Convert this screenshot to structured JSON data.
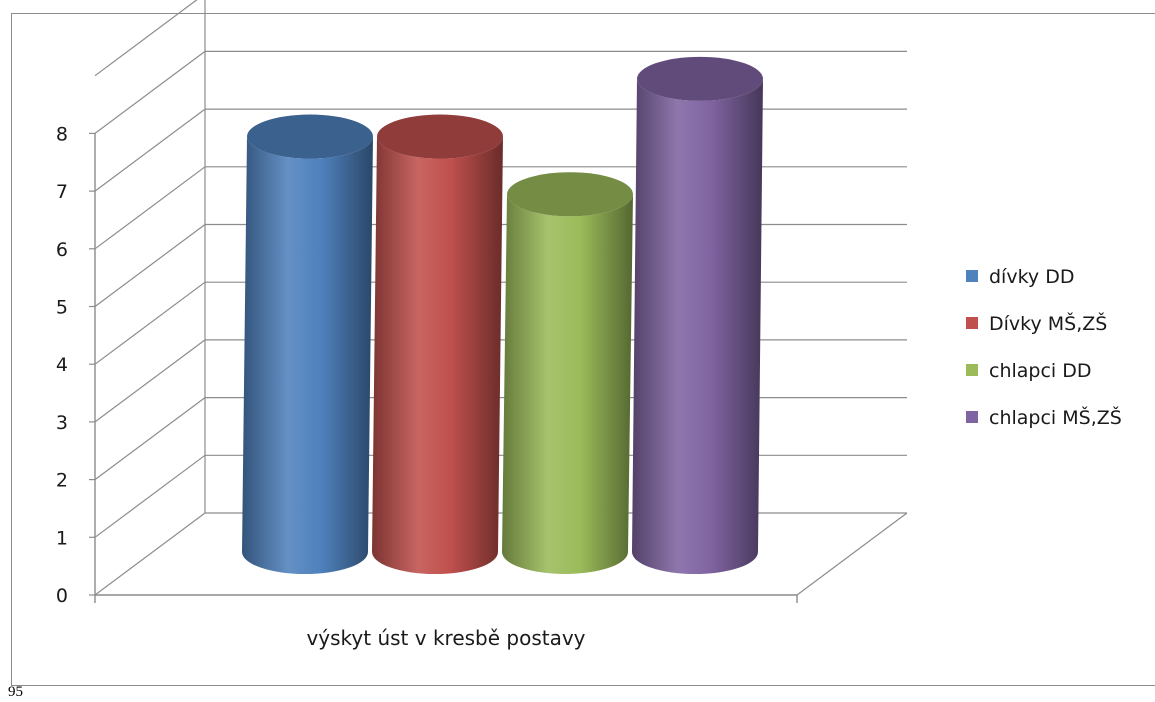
{
  "page_number": "95",
  "chart_data": {
    "type": "bar",
    "style": "3d-cylinder",
    "categories": [
      "výskyt úst v kresbě postavy"
    ],
    "series": [
      {
        "name": "dívky DD",
        "values": [
          7.2
        ],
        "color": "#4f81bd"
      },
      {
        "name": "Dívky MŠ,ZŠ",
        "values": [
          7.2
        ],
        "color": "#c0504d"
      },
      {
        "name": "chlapci DD",
        "values": [
          6.2
        ],
        "color": "#9bbb59"
      },
      {
        "name": "chlapci MŠ,ZŠ",
        "values": [
          8.2
        ],
        "color": "#8064a2"
      }
    ],
    "ylim": [
      0,
      8
    ],
    "yticks": [
      "0",
      "1",
      "2",
      "3",
      "4",
      "5",
      "6",
      "7",
      "8"
    ],
    "grid": true,
    "legend": "right"
  }
}
